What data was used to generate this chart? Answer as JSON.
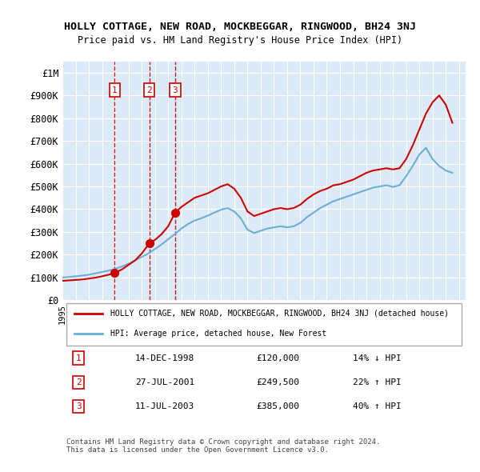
{
  "title": "HOLLY COTTAGE, NEW ROAD, MOCKBEGGAR, RINGWOOD, BH24 3NJ",
  "subtitle": "Price paid vs. HM Land Registry's House Price Index (HPI)",
  "ylabel": "",
  "background_color": "#dce9f7",
  "plot_bg_color": "#dce9f7",
  "ylim": [
    0,
    1050000
  ],
  "yticks": [
    0,
    100000,
    200000,
    300000,
    400000,
    500000,
    600000,
    700000,
    800000,
    900000,
    1000000
  ],
  "ytick_labels": [
    "£0",
    "£100K",
    "£200K",
    "£300K",
    "£400K",
    "£500K",
    "£600K",
    "£700K",
    "£800K",
    "£900K",
    "£1M"
  ],
  "xlim_start": 1995.0,
  "xlim_end": 2025.5,
  "sales": [
    {
      "num": 1,
      "year": 1998.96,
      "price": 120000,
      "date": "14-DEC-1998",
      "pct": "14%",
      "dir": "↓"
    },
    {
      "num": 2,
      "year": 2001.57,
      "price": 249500,
      "date": "27-JUL-2001",
      "pct": "22%",
      "dir": "↑"
    },
    {
      "num": 3,
      "year": 2003.53,
      "price": 385000,
      "date": "11-JUL-2003",
      "pct": "40%",
      "dir": "↑"
    }
  ],
  "red_line_color": "#cc0000",
  "blue_line_color": "#6baed6",
  "marker_color": "#cc0000",
  "dashed_color": "#cc0000",
  "legend_label_red": "HOLLY COTTAGE, NEW ROAD, MOCKBEGGAR, RINGWOOD, BH24 3NJ (detached house)",
  "legend_label_blue": "HPI: Average price, detached house, New Forest",
  "footer": "Contains HM Land Registry data © Crown copyright and database right 2024.\nThis data is licensed under the Open Government Licence v3.0.",
  "red_line_x": [
    1995.0,
    1995.5,
    1996.0,
    1996.5,
    1997.0,
    1997.5,
    1998.0,
    1998.5,
    1998.96,
    1999.5,
    2000.0,
    2000.5,
    2001.0,
    2001.57,
    2002.0,
    2002.5,
    2003.0,
    2003.53,
    2004.0,
    2004.5,
    2005.0,
    2005.5,
    2006.0,
    2006.5,
    2007.0,
    2007.5,
    2008.0,
    2008.5,
    2009.0,
    2009.5,
    2010.0,
    2010.5,
    2011.0,
    2011.5,
    2012.0,
    2012.5,
    2013.0,
    2013.5,
    2014.0,
    2014.5,
    2015.0,
    2015.5,
    2016.0,
    2016.5,
    2017.0,
    2017.5,
    2018.0,
    2018.5,
    2019.0,
    2019.5,
    2020.0,
    2020.5,
    2021.0,
    2021.5,
    2022.0,
    2022.5,
    2023.0,
    2023.5,
    2024.0,
    2024.5
  ],
  "red_line_y": [
    85000,
    87000,
    89000,
    91000,
    95000,
    99000,
    105000,
    112000,
    120000,
    135000,
    155000,
    175000,
    205000,
    249500,
    265000,
    290000,
    325000,
    385000,
    410000,
    430000,
    450000,
    460000,
    470000,
    485000,
    500000,
    510000,
    490000,
    450000,
    390000,
    370000,
    380000,
    390000,
    400000,
    405000,
    400000,
    405000,
    420000,
    445000,
    465000,
    480000,
    490000,
    505000,
    510000,
    520000,
    530000,
    545000,
    560000,
    570000,
    575000,
    580000,
    575000,
    580000,
    620000,
    680000,
    750000,
    820000,
    870000,
    900000,
    860000,
    780000
  ],
  "blue_line_x": [
    1995.0,
    1995.5,
    1996.0,
    1996.5,
    1997.0,
    1997.5,
    1998.0,
    1998.5,
    1999.0,
    1999.5,
    2000.0,
    2000.5,
    2001.0,
    2001.5,
    2002.0,
    2002.5,
    2003.0,
    2003.5,
    2004.0,
    2004.5,
    2005.0,
    2005.5,
    2006.0,
    2006.5,
    2007.0,
    2007.5,
    2008.0,
    2008.5,
    2009.0,
    2009.5,
    2010.0,
    2010.5,
    2011.0,
    2011.5,
    2012.0,
    2012.5,
    2013.0,
    2013.5,
    2014.0,
    2014.5,
    2015.0,
    2015.5,
    2016.0,
    2016.5,
    2017.0,
    2017.5,
    2018.0,
    2018.5,
    2019.0,
    2019.5,
    2020.0,
    2020.5,
    2021.0,
    2021.5,
    2022.0,
    2022.5,
    2023.0,
    2023.5,
    2024.0,
    2024.5
  ],
  "blue_line_y": [
    100000,
    102000,
    105000,
    108000,
    112000,
    118000,
    124000,
    130000,
    138000,
    148000,
    160000,
    175000,
    190000,
    205000,
    225000,
    245000,
    268000,
    290000,
    315000,
    335000,
    350000,
    360000,
    372000,
    385000,
    398000,
    405000,
    390000,
    360000,
    310000,
    295000,
    305000,
    315000,
    320000,
    325000,
    320000,
    325000,
    340000,
    365000,
    385000,
    405000,
    420000,
    435000,
    445000,
    455000,
    465000,
    475000,
    485000,
    495000,
    500000,
    505000,
    498000,
    505000,
    545000,
    590000,
    640000,
    670000,
    620000,
    590000,
    570000,
    560000
  ]
}
